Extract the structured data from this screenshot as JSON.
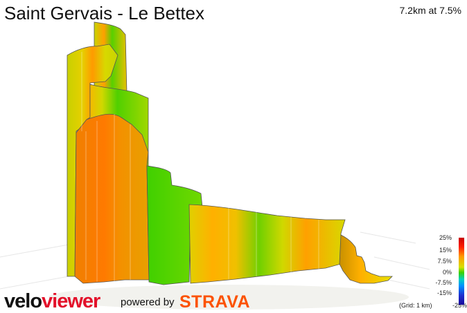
{
  "title": "Saint Gervais - Le Bettex",
  "stat": "7.2km at 7.5%",
  "legend": {
    "labels": [
      "25%",
      "15%",
      "7.5%",
      "0%",
      "-7.5%",
      "-15%",
      "-25%"
    ],
    "grid_note": "(Grid: 1 km)"
  },
  "branding": {
    "velo": "velo",
    "viewer": "viewer",
    "powered_by": "powered by",
    "strava": "STRAVA"
  },
  "colors": {
    "gradient_steep": "#e86a00",
    "gradient_mid": "#d8d000",
    "gradient_flat": "#40d000",
    "strava_orange": "#fc5200",
    "brand_red": "#e3102a"
  }
}
